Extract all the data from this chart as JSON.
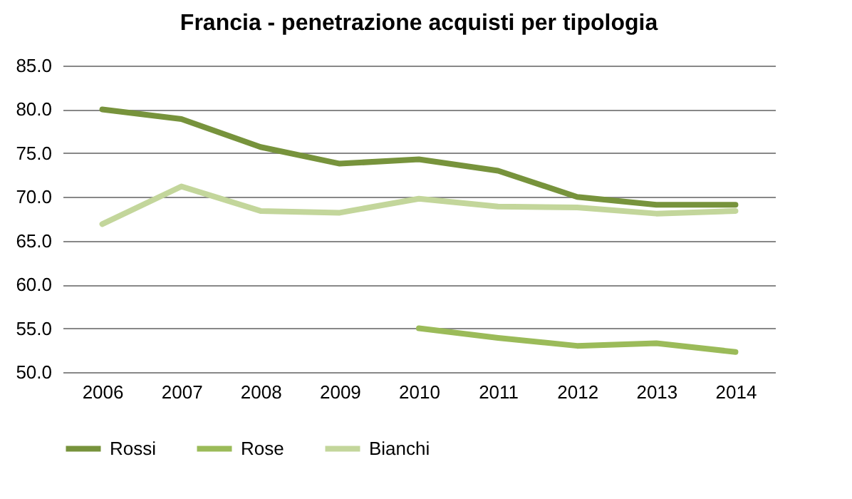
{
  "chart_data": {
    "type": "line",
    "title": "Francia - penetrazione acquisti per tipologia",
    "categories": [
      "2006",
      "2007",
      "2008",
      "2009",
      "2010",
      "2011",
      "2012",
      "2013",
      "2014"
    ],
    "series": [
      {
        "name": "Rossi",
        "color": "#77933c",
        "values": [
          80.0,
          78.9,
          75.7,
          73.8,
          74.3,
          73.0,
          70.0,
          69.1,
          69.1
        ]
      },
      {
        "name": "Rose",
        "color": "#9bbb59",
        "values": [
          null,
          null,
          null,
          null,
          55.0,
          53.9,
          53.0,
          53.3,
          52.3
        ]
      },
      {
        "name": "Bianchi",
        "color": "#c3d69b",
        "values": [
          66.9,
          71.2,
          68.4,
          68.2,
          69.8,
          68.9,
          68.8,
          68.1,
          68.4
        ]
      }
    ],
    "ylim": [
      50,
      85
    ],
    "yticks": [
      {
        "value": 50,
        "label": "50.0"
      },
      {
        "value": 55,
        "label": "55.0"
      },
      {
        "value": 60,
        "label": "60.0"
      },
      {
        "value": 65,
        "label": "65.0"
      },
      {
        "value": 70,
        "label": "70.0"
      },
      {
        "value": 75,
        "label": "75.0"
      },
      {
        "value": 80,
        "label": "80.0"
      },
      {
        "value": 85,
        "label": "85.0"
      }
    ],
    "grid": "y",
    "legend": "bottom",
    "marker": "none",
    "line_style": "solid"
  }
}
